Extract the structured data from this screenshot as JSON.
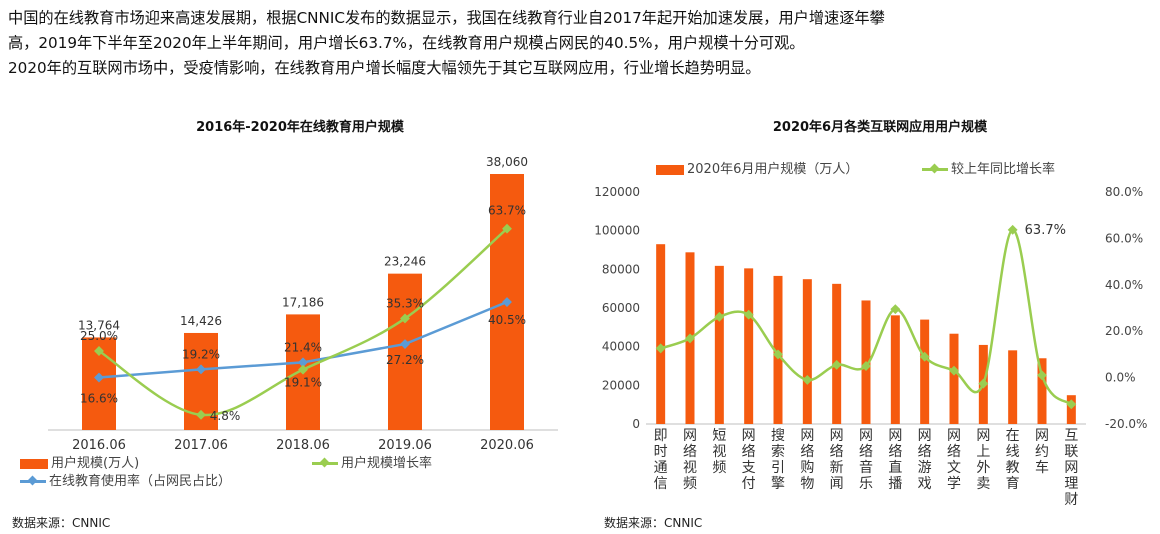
{
  "intro": {
    "line1": "中国的在线教育市场迎来高速发展期，根据CNNIC发布的数据显示，我国在线教育行业自2017年起开始加速发展，用户增速逐年攀",
    "line2": "高，2019年下半年至2020年上半年期间，用户增长63.7%，在线教育用户规模占网民的40.5%，用户规模十分可观。",
    "line3": "2020年的互联网市场中，受疫情影响，在线教育用户增长幅度大幅领先于其它互联网应用，行业增长趋势明显。"
  },
  "colors": {
    "bar": "#f55a0f",
    "growth": "#9acd50",
    "usage": "#5b9bd5"
  },
  "chart_data": [
    {
      "type": "bar",
      "title": "2016年-2020年在线教育用户规模",
      "categories": [
        "2016.06",
        "2017.06",
        "2018.06",
        "2019.06",
        "2020.06"
      ],
      "series": [
        {
          "name": "用户规模(万人)",
          "type": "bar",
          "values": [
            13764,
            14426,
            17186,
            23246,
            38060
          ],
          "labels": [
            "13,764",
            "14,426",
            "17,186",
            "23,246",
            "38,060"
          ]
        },
        {
          "name": "用户规模增长率",
          "type": "line",
          "values": [
            25.0,
            4.8,
            19.1,
            35.3,
            63.7
          ],
          "labels": [
            "25.0%",
            "4.8%",
            "19.1%",
            "35.3%",
            "63.7%"
          ]
        },
        {
          "name": "在线教育使用率（占网民占比）",
          "type": "line",
          "values": [
            16.6,
            19.2,
            21.4,
            27.2,
            40.5
          ],
          "labels": [
            "16.6%",
            "19.2%",
            "21.4%",
            "27.2%",
            "40.5%"
          ]
        }
      ],
      "source": "数据来源：CNNIC"
    },
    {
      "type": "bar",
      "title": "2020年6月各类互联网应用用户规模",
      "categories": [
        "即时通信",
        "网络视频",
        "短视频",
        "网络支付",
        "搜索引擎",
        "网络购物",
        "网络新闻",
        "网络音乐",
        "网络直播",
        "网络游戏",
        "网络文学",
        "网上外卖",
        "在线教育",
        "网约车",
        "互联网理财"
      ],
      "series": [
        {
          "name": "2020年6月用户规模（万人）",
          "type": "bar",
          "values": [
            93000,
            88800,
            81800,
            80500,
            76600,
            74900,
            72500,
            63900,
            56200,
            54000,
            46700,
            40900,
            38100,
            34000,
            14900
          ]
        },
        {
          "name": "较上年同比增长率",
          "type": "line",
          "values": [
            12.6,
            16.9,
            26.2,
            27.1,
            10.0,
            -1.0,
            5.5,
            5.0,
            29.5,
            9.0,
            3.0,
            -2.6,
            63.7,
            1.0,
            -11.5
          ]
        }
      ],
      "point_label": "63.7%",
      "y_ticks": [
        "0",
        "20000",
        "40000",
        "60000",
        "80000",
        "100000",
        "120000"
      ],
      "y2_ticks": [
        "-20.0%",
        "0.0%",
        "20.0%",
        "40.0%",
        "60.0%",
        "80.0%"
      ],
      "ylim": [
        0,
        120000
      ],
      "y2lim": [
        -20,
        80
      ],
      "source": "数据来源：CNNIC"
    }
  ]
}
